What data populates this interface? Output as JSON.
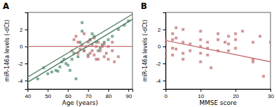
{
  "chart_data": [
    {
      "type": "scatter",
      "title": "A",
      "x_label": "Age (years)",
      "y_label": "miR-146a levels (-dCt)",
      "xlim": [
        40,
        92
      ],
      "ylim": [
        -5,
        4
      ],
      "xticks": [
        40,
        50,
        60,
        70,
        80,
        90
      ],
      "yticks": [
        -4,
        -2,
        0,
        2
      ],
      "series": [
        {
          "type": "scatter",
          "marker": "square",
          "color": "#5a9070",
          "x": [
            45,
            48,
            50,
            52,
            54,
            55,
            56,
            57,
            58,
            59,
            60,
            61,
            62,
            63,
            64,
            65,
            66,
            67,
            67,
            68,
            70,
            71,
            72,
            73,
            74,
            75,
            76,
            77,
            78,
            80,
            82,
            85,
            88,
            90
          ],
          "values": [
            -3.8,
            -2.5,
            -3.2,
            -3.0,
            -2.8,
            -2.9,
            -2.4,
            -1.8,
            -1.5,
            -2.0,
            -2.2,
            -2.8,
            -1.5,
            -0.8,
            -3.8,
            -1.2,
            0.5,
            1.8,
            2.8,
            -0.5,
            -1.0,
            0.8,
            1.5,
            1.2,
            0.5,
            -0.5,
            -0.2,
            0.2,
            0.5,
            0.8,
            1.2,
            2.0,
            2.5,
            3.0
          ]
        },
        {
          "type": "scatter",
          "marker": "square",
          "color": "#c47070",
          "x": [
            62,
            63,
            64,
            65,
            65,
            66,
            67,
            68,
            68,
            69,
            70,
            70,
            71,
            71,
            72,
            72,
            73,
            73,
            74,
            74,
            75,
            75,
            76,
            77,
            78,
            78,
            79,
            80,
            80,
            82,
            82,
            83,
            85
          ],
          "values": [
            -0.5,
            0.8,
            1.2,
            0.5,
            -0.8,
            -0.3,
            0.2,
            1.5,
            -0.5,
            0.0,
            0.5,
            -1.2,
            0.8,
            -0.8,
            0.2,
            -0.5,
            1.0,
            -1.0,
            0.0,
            -1.5,
            0.5,
            -1.5,
            -0.5,
            0.0,
            0.3,
            -1.2,
            -0.8,
            0.0,
            -1.5,
            0.5,
            -0.5,
            -1.8,
            -1.2
          ]
        },
        {
          "type": "line",
          "line_style": "solid",
          "color": "#4a7c62",
          "x": [
            40,
            92
          ],
          "values": [
            -4.2,
            3.2
          ]
        },
        {
          "type": "line",
          "line_style": "solid",
          "color": "#4a7c62",
          "x": [
            40,
            92
          ],
          "values": [
            -3.6,
            3.8
          ]
        },
        {
          "type": "hline",
          "line_style": "solid",
          "color": "#c47070",
          "values": [
            0.0
          ]
        }
      ]
    },
    {
      "type": "scatter",
      "title": "B",
      "x_label": "MMSE score",
      "y_label": "miR-146a levels (-dCt)",
      "xlim": [
        0,
        30
      ],
      "ylim": [
        -5,
        4
      ],
      "xticks": [
        0,
        10,
        20,
        30
      ],
      "yticks": [
        -4,
        -2,
        0,
        2
      ],
      "series": [
        {
          "type": "scatter",
          "marker": "square",
          "color": "#c47070",
          "x": [
            0,
            0,
            0,
            0,
            2,
            2,
            2,
            2,
            3,
            3,
            3,
            5,
            5,
            5,
            5,
            7,
            7,
            10,
            10,
            10,
            10,
            10,
            12,
            12,
            12,
            13,
            15,
            15,
            15,
            17,
            18,
            18,
            18,
            20,
            20,
            20,
            22,
            25,
            25,
            25,
            27,
            28,
            30
          ],
          "values": [
            0.8,
            0.3,
            -0.5,
            -1.2,
            1.5,
            0.8,
            -0.2,
            -1.0,
            2.2,
            1.0,
            -0.3,
            2.0,
            0.5,
            -0.8,
            -1.5,
            0.3,
            -0.5,
            1.8,
            0.8,
            0.0,
            -0.8,
            -1.8,
            0.5,
            -0.2,
            -1.0,
            -2.5,
            1.5,
            0.8,
            -0.5,
            0.5,
            1.2,
            0.3,
            -0.5,
            1.5,
            0.8,
            -0.2,
            1.8,
            0.5,
            -1.5,
            -1.8,
            1.2,
            -3.5,
            0.5
          ]
        },
        {
          "type": "line",
          "line_style": "solid",
          "color": "#c47070",
          "x": [
            0,
            30
          ],
          "values": [
            0.7,
            -1.8
          ]
        }
      ]
    }
  ]
}
